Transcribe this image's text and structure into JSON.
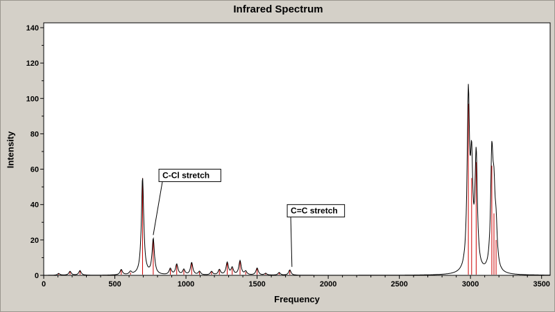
{
  "window": {
    "background": "#d4d0c8"
  },
  "colors": {
    "plot_background": "#ffffff",
    "axis": "#000000",
    "stick": "#cc0000",
    "envelope": "#000000",
    "annotation_box_fill": "#ffffff",
    "annotation_box_border": "#000000"
  },
  "chart_data": {
    "type": "line",
    "title": "Infrared Spectrum",
    "xlabel": "Frequency",
    "ylabel": "Intensity",
    "xlim": [
      0,
      3560
    ],
    "ylim": [
      0,
      140
    ],
    "x_ticks": [
      0,
      500,
      1000,
      1500,
      2000,
      2500,
      3000,
      3500
    ],
    "y_ticks": [
      0,
      20,
      40,
      60,
      80,
      100,
      120,
      140
    ],
    "x_minor_step": 100,
    "y_minor_step": 10,
    "grid": false,
    "legend": "none",
    "series": [
      {
        "name": "IR intensity sticks",
        "type": "stick",
        "color": "#cc0000",
        "points": [
          [
            105,
            1.0
          ],
          [
            185,
            2.2
          ],
          [
            255,
            2.6
          ],
          [
            545,
            3.0
          ],
          [
            610,
            1.6
          ],
          [
            695,
            55
          ],
          [
            770,
            20
          ],
          [
            890,
            3.5
          ],
          [
            935,
            6
          ],
          [
            985,
            3
          ],
          [
            1040,
            7
          ],
          [
            1095,
            2
          ],
          [
            1180,
            2
          ],
          [
            1235,
            3
          ],
          [
            1290,
            7
          ],
          [
            1325,
            4
          ],
          [
            1380,
            8
          ],
          [
            1420,
            2
          ],
          [
            1500,
            4
          ],
          [
            1560,
            1
          ],
          [
            1655,
            1.5
          ],
          [
            1730,
            3
          ],
          [
            2985,
            97
          ],
          [
            3008,
            55
          ],
          [
            3040,
            64
          ],
          [
            3150,
            62
          ],
          [
            3165,
            35
          ],
          [
            3180,
            20
          ]
        ]
      },
      {
        "name": "Spectrum envelope",
        "type": "line",
        "color": "#000000",
        "derived": "lorentzian_sum_of_sticks",
        "gamma": 10
      }
    ],
    "annotations": [
      {
        "label": "C-Cl stretch",
        "box_x": 810,
        "box_y": 60,
        "target_x": 770,
        "target_y": 22
      },
      {
        "label": "C=C stretch",
        "box_x": 1712,
        "box_y": 40,
        "target_x": 1745,
        "target_y": 4
      }
    ]
  }
}
